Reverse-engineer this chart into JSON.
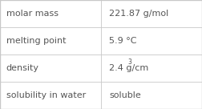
{
  "rows": [
    {
      "label": "molar mass",
      "value": "221.87 g/mol",
      "superscript": null
    },
    {
      "label": "melting point",
      "value": "5.9 °C",
      "superscript": null
    },
    {
      "label": "density",
      "value": "2.4 g/cm",
      "superscript": "3"
    },
    {
      "label": "solubility in water",
      "value": "soluble",
      "superscript": null
    }
  ],
  "col_split": 0.5,
  "background": "#ffffff",
  "line_color": "#c8c8c8",
  "label_color": "#555555",
  "value_color": "#555555",
  "font_size": 8.0,
  "super_font_size": 5.5,
  "fig_width": 2.52,
  "fig_height": 1.36,
  "dpi": 100
}
